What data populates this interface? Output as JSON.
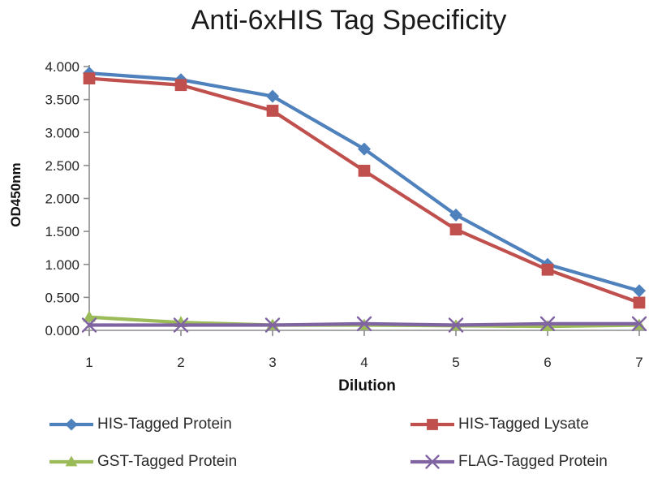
{
  "chart_data": {
    "type": "line",
    "title": "Anti-6xHIS Tag Specificity",
    "xlabel": "Dilution",
    "ylabel": "OD450nm",
    "x": [
      1,
      2,
      3,
      4,
      5,
      6,
      7
    ],
    "xtick_labels": [
      "1",
      "2",
      "3",
      "4",
      "5",
      "6",
      "7"
    ],
    "ytick_labels": [
      "0.000",
      "0.500",
      "1.000",
      "1.500",
      "2.000",
      "2.500",
      "3.000",
      "3.500",
      "4.000"
    ],
    "ylim": [
      0,
      4
    ],
    "ytick_step": 0.5,
    "grid": false,
    "legend_position": "bottom",
    "axis_color": "#8c8c8c",
    "text_color": "#262626",
    "series": [
      {
        "name": "HIS-Tagged Protein",
        "marker": "diamond",
        "color": "#4F81BD",
        "values": [
          3.9,
          3.8,
          3.55,
          2.75,
          1.75,
          1.0,
          0.6
        ]
      },
      {
        "name": "HIS-Tagged Lysate",
        "marker": "square",
        "color": "#C0504D",
        "values": [
          3.82,
          3.72,
          3.33,
          2.42,
          1.53,
          0.92,
          0.42
        ]
      },
      {
        "name": "GST-Tagged Protein",
        "marker": "triangle",
        "color": "#9BBB59",
        "values": [
          0.2,
          0.12,
          0.08,
          0.08,
          0.07,
          0.06,
          0.08
        ]
      },
      {
        "name": "FLAG-Tagged Protein",
        "marker": "x",
        "color": "#8064A2",
        "values": [
          0.08,
          0.08,
          0.08,
          0.1,
          0.08,
          0.1,
          0.1
        ]
      }
    ]
  }
}
